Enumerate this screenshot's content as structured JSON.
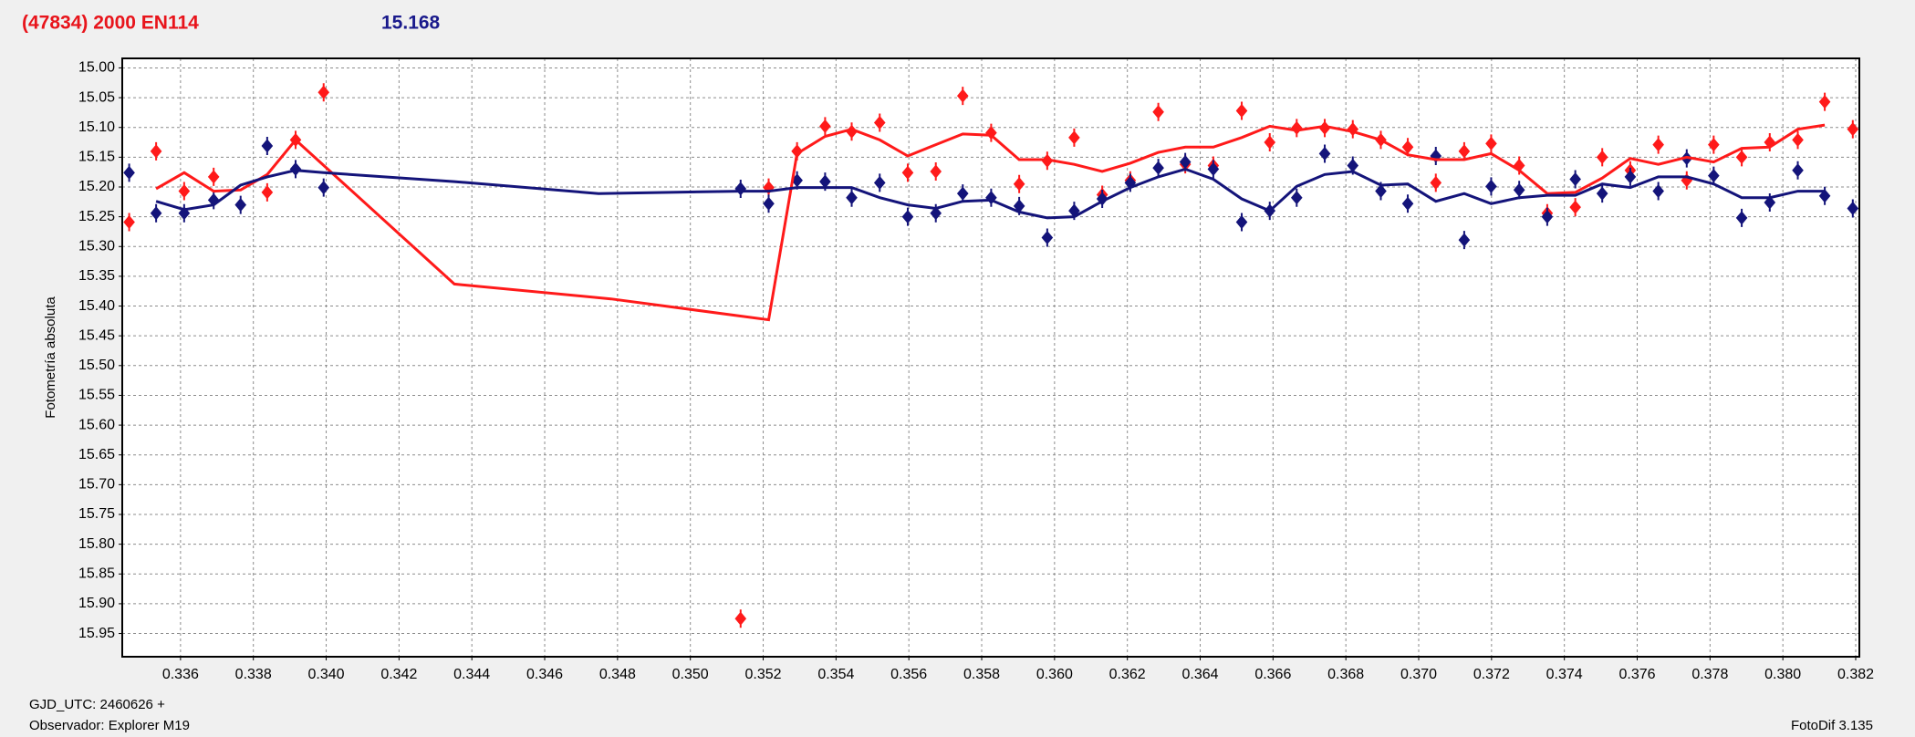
{
  "chart_data": {
    "type": "line",
    "title": "(47834) 2000 EN114",
    "title_color": "#e8141b",
    "annotation": "15.168",
    "annotation_color": "#1a1a8c",
    "y_label": "Fotometría absoluta",
    "footer_left": [
      "GJD_UTC: 2460626 +",
      "Observador: Explorer M19"
    ],
    "footer_right": "FotoDif 3.135",
    "xlim": [
      0.3344,
      0.3821
    ],
    "ylim": [
      14.984,
      15.989
    ],
    "y_inverted": true,
    "grid": true,
    "xticks": [
      0.336,
      0.338,
      {
        "value": 0.34,
        "label": "0.340"
      },
      0.342,
      0.344,
      0.346,
      0.348,
      {
        "value": 0.35,
        "label": "0.350"
      },
      0.352,
      0.354,
      0.356,
      0.358,
      {
        "value": 0.36,
        "label": "0.360"
      },
      0.362,
      0.364,
      0.366,
      0.368,
      {
        "value": 0.37,
        "label": "0.370"
      },
      0.372,
      0.374,
      0.376,
      0.378,
      {
        "value": 0.38,
        "label": "0.380"
      },
      0.382
    ],
    "yticks": [
      {
        "value": 15.0,
        "label": "15.00"
      },
      15.05,
      {
        "value": 15.1,
        "label": "15.10"
      },
      15.15,
      {
        "value": 15.2,
        "label": "15.20"
      },
      15.25,
      {
        "value": 15.3,
        "label": "15.30"
      },
      15.35,
      {
        "value": 15.4,
        "label": "15.40"
      },
      15.45,
      {
        "value": 15.5,
        "label": "15.50"
      },
      15.55,
      {
        "value": 15.6,
        "label": "15.60"
      },
      15.65,
      {
        "value": 15.7,
        "label": "15.70"
      },
      15.75,
      {
        "value": 15.8,
        "label": "15.80"
      },
      15.85,
      {
        "value": 15.9,
        "label": "15.90"
      },
      15.95
    ],
    "series": [
      {
        "color": "#ff1a1a",
        "mode": "markers",
        "x": [
          0.33459,
          0.33533,
          0.3361,
          0.33691,
          0.33838,
          0.33916,
          0.33993,
          0.35138,
          0.35215,
          0.35293,
          0.3537,
          0.35443,
          0.3552,
          0.35597,
          0.35674,
          0.35748,
          0.35826,
          0.35903,
          0.3598,
          0.36054,
          0.36131,
          0.36208,
          0.36285,
          0.36359,
          0.36436,
          0.36514,
          0.36591,
          0.36665,
          0.36742,
          0.36819,
          0.36896,
          0.3697,
          0.37047,
          0.37125,
          0.37199,
          0.37276,
          0.37353,
          0.3743,
          0.37504,
          0.37581,
          0.37658,
          0.37736,
          0.3781,
          0.37887,
          0.37964,
          0.38041,
          0.38115,
          0.38192
        ],
        "values": [
          15.259,
          15.14,
          15.207,
          15.183,
          15.209,
          15.121,
          15.041,
          15.925,
          15.201,
          15.14,
          15.098,
          15.107,
          15.092,
          15.176,
          15.174,
          15.047,
          15.109,
          15.195,
          15.156,
          15.117,
          15.213,
          15.189,
          15.074,
          15.162,
          15.164,
          15.072,
          15.125,
          15.101,
          15.101,
          15.103,
          15.121,
          15.133,
          15.193,
          15.14,
          15.127,
          15.164,
          15.244,
          15.234,
          15.15,
          15.172,
          15.129,
          15.189,
          15.129,
          15.15,
          15.125,
          15.121,
          15.057,
          15.103
        ]
      },
      {
        "color": "#14147a",
        "mode": "markers",
        "x": [
          0.33459,
          0.33533,
          0.3361,
          0.33691,
          0.33765,
          0.33838,
          0.33916,
          0.33993,
          0.35138,
          0.35215,
          0.35293,
          0.3537,
          0.35443,
          0.3552,
          0.35597,
          0.35674,
          0.35748,
          0.35826,
          0.35903,
          0.3598,
          0.36054,
          0.36131,
          0.36208,
          0.36285,
          0.36359,
          0.36436,
          0.36514,
          0.36591,
          0.36665,
          0.36742,
          0.36819,
          0.36896,
          0.3697,
          0.37047,
          0.37125,
          0.37199,
          0.37276,
          0.37353,
          0.3743,
          0.37504,
          0.37581,
          0.37658,
          0.37736,
          0.3781,
          0.37887,
          0.37964,
          0.38041,
          0.38115,
          0.38192
        ],
        "values": [
          15.176,
          15.244,
          15.244,
          15.222,
          15.23,
          15.131,
          15.17,
          15.201,
          15.203,
          15.228,
          15.189,
          15.191,
          15.218,
          15.193,
          15.25,
          15.244,
          15.211,
          15.218,
          15.232,
          15.285,
          15.24,
          15.22,
          15.193,
          15.168,
          15.158,
          15.17,
          15.259,
          15.24,
          15.218,
          15.144,
          15.164,
          15.207,
          15.228,
          15.148,
          15.289,
          15.199,
          15.205,
          15.25,
          15.187,
          15.211,
          15.183,
          15.207,
          15.152,
          15.181,
          15.252,
          15.226,
          15.172,
          15.215,
          15.236
        ]
      },
      {
        "color": "#ff1a1a",
        "mode": "lines",
        "x": [
          0.33533,
          0.3361,
          0.33691,
          0.33765,
          0.33838,
          0.33916,
          0.34352,
          0.34782,
          0.35215,
          0.35293,
          0.3537,
          0.35443,
          0.3552,
          0.35597,
          0.35674,
          0.35748,
          0.35826,
          0.35903,
          0.3598,
          0.36054,
          0.36131,
          0.36208,
          0.36285,
          0.36359,
          0.36436,
          0.36514,
          0.36591,
          0.36665,
          0.36742,
          0.36819,
          0.36896,
          0.3697,
          0.37047,
          0.37125,
          0.37199,
          0.37276,
          0.37353,
          0.3743,
          0.37504,
          0.37581,
          0.37658,
          0.37736,
          0.3781,
          0.37887,
          0.37964,
          0.38041,
          0.38115
        ],
        "values": [
          15.203,
          15.176,
          15.207,
          15.205,
          15.179,
          15.121,
          15.363,
          15.388,
          15.423,
          15.144,
          15.115,
          15.103,
          15.121,
          15.148,
          15.129,
          15.111,
          15.113,
          15.154,
          15.154,
          15.162,
          15.174,
          15.16,
          15.142,
          15.133,
          15.133,
          15.117,
          15.098,
          15.105,
          15.098,
          15.107,
          15.121,
          15.146,
          15.154,
          15.154,
          15.144,
          15.172,
          15.211,
          15.209,
          15.185,
          15.152,
          15.162,
          15.15,
          15.158,
          15.135,
          15.133,
          15.103,
          15.096
        ]
      },
      {
        "color": "#14147a",
        "mode": "lines",
        "x": [
          0.33533,
          0.3361,
          0.33691,
          0.33765,
          0.33838,
          0.33916,
          0.33993,
          0.34352,
          0.34748,
          0.35138,
          0.35215,
          0.35293,
          0.35443,
          0.3552,
          0.35597,
          0.35674,
          0.35748,
          0.35826,
          0.35903,
          0.3598,
          0.36054,
          0.36131,
          0.36208,
          0.36285,
          0.36359,
          0.36436,
          0.36514,
          0.36591,
          0.36665,
          0.36742,
          0.36819,
          0.36896,
          0.3697,
          0.37047,
          0.37125,
          0.37199,
          0.37276,
          0.37353,
          0.3743,
          0.37504,
          0.37581,
          0.37658,
          0.37736,
          0.3781,
          0.37887,
          0.37964,
          0.38041,
          0.38115
        ],
        "values": [
          15.224,
          15.238,
          15.23,
          15.197,
          15.183,
          15.172,
          15.176,
          15.191,
          15.211,
          15.207,
          15.207,
          15.201,
          15.201,
          15.218,
          15.23,
          15.236,
          15.224,
          15.222,
          15.242,
          15.252,
          15.25,
          15.224,
          15.201,
          15.183,
          15.17,
          15.187,
          15.22,
          15.24,
          15.199,
          15.179,
          15.174,
          15.197,
          15.195,
          15.224,
          15.211,
          15.228,
          15.218,
          15.214,
          15.214,
          15.195,
          15.201,
          15.183,
          15.183,
          15.195,
          15.218,
          15.218,
          15.207,
          15.207
        ]
      }
    ]
  }
}
